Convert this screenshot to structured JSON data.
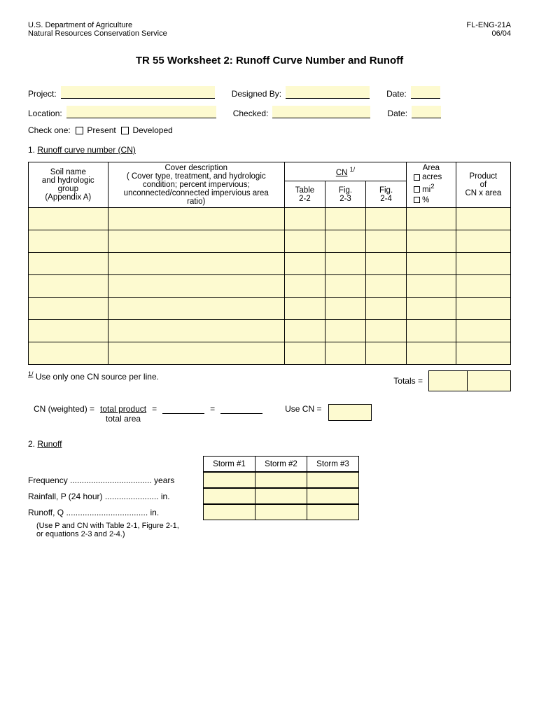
{
  "header": {
    "dept": "U.S. Department of Agriculture",
    "service": "Natural Resources Conservation Service",
    "form_id": "FL-ENG-21A",
    "date": "06/04"
  },
  "title": "TR 55 Worksheet 2:  Runoff Curve Number and Runoff",
  "fields": {
    "project": "Project:",
    "designed_by": "Designed By:",
    "date": "Date:",
    "location": "Location:",
    "checked": "Checked:"
  },
  "check_one": {
    "label": "Check one:",
    "present": "Present",
    "developed": "Developed"
  },
  "section1": {
    "num": "1.",
    "title": "Runoff curve number (CN)",
    "columns": {
      "soil": "Soil name\nand hydrologic\ngroup\n(Appendix A)",
      "cover": "Cover description\n( Cover type, treatment, and hydrologic\ncondition; percent impervious;\nunconnected/connected impervious area\nratio)",
      "cn": "CN",
      "cn_sup": "1/",
      "table22": "Table\n2-2",
      "fig23": "Fig.\n2-3",
      "fig24": "Fig.\n2-4",
      "area": "Area",
      "area_units": {
        "acres": "acres",
        "mi2": "mi",
        "pct": "%"
      },
      "product": "Product\nof\nCN x area"
    },
    "rows": 7,
    "footnote": "Use only one CN source per line.",
    "footnote_sup": "1/",
    "totals": "Totals  =",
    "cn_weighted": {
      "a": "CN (weighted)  =",
      "top": "total product",
      "bot": "total area",
      "eq": "=",
      "use": "Use CN  ="
    }
  },
  "section2": {
    "num": "2.",
    "title": "Runoff",
    "storms": [
      "Storm #1",
      "Storm #2",
      "Storm #3"
    ],
    "rows": [
      {
        "label": "Frequency",
        "unit": "years"
      },
      {
        "label": "Rainfall, P (24 hour)",
        "unit": "in."
      },
      {
        "label": "Runoff, Q",
        "unit": "in."
      }
    ],
    "note": "(Use P and CN with Table 2-1, Figure 2-1,\n  or equations 2-3 and 2-4.)"
  }
}
